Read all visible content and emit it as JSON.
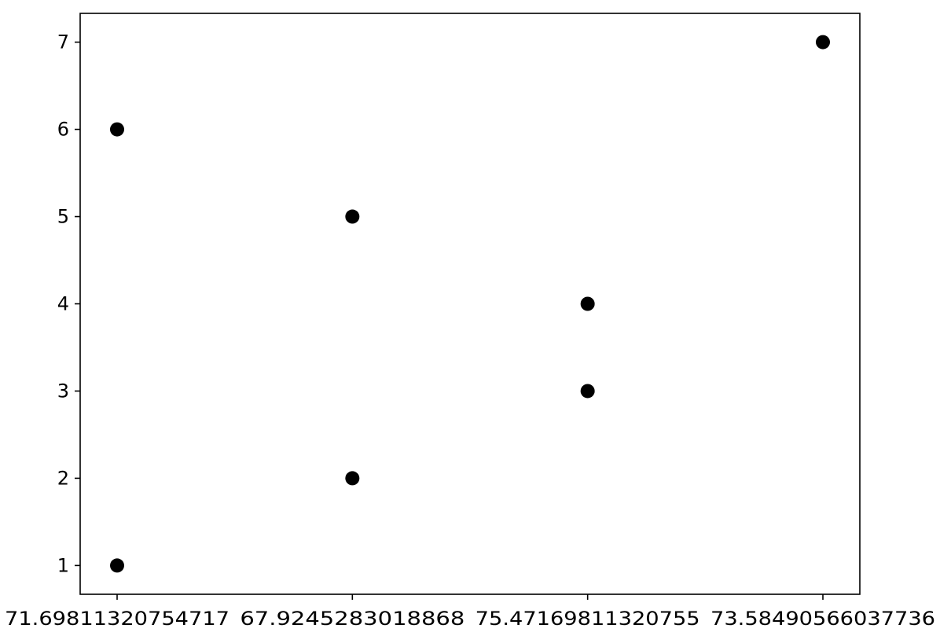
{
  "chart_data": {
    "type": "scatter",
    "title": "",
    "xlabel": "",
    "ylabel": "",
    "x_axis_kind": "categorical",
    "categories": [
      "71.69811320754717",
      "67.9245283018868",
      "75.47169811320755",
      "73.58490566037736"
    ],
    "points": [
      {
        "category": "71.69811320754717",
        "y": 6
      },
      {
        "category": "71.69811320754717",
        "y": 1
      },
      {
        "category": "67.9245283018868",
        "y": 5
      },
      {
        "category": "67.9245283018868",
        "y": 2
      },
      {
        "category": "75.47169811320755",
        "y": 4
      },
      {
        "category": "75.47169811320755",
        "y": 3
      },
      {
        "category": "73.58490566037736",
        "y": 7
      }
    ],
    "y_ticks": [
      1,
      2,
      3,
      4,
      5,
      6,
      7
    ],
    "ylim": [
      0.67,
      7.33
    ],
    "grid": false,
    "legend": "none",
    "marker_color": "#000000",
    "axes_color": "#000000",
    "background": "#ffffff"
  }
}
